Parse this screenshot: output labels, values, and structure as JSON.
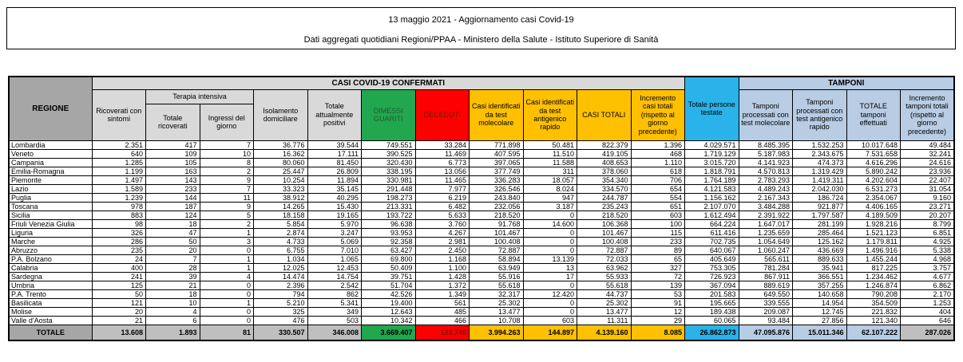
{
  "title": {
    "line1": "13 maggio 2021 - Aggiornamento casi Covid-19",
    "line2": "Dati aggregati quotidiani Regioni/PPAA - Ministero della Salute - Istituto Superiore di Sanità"
  },
  "colors": {
    "header_gray": "#d9d9d9",
    "regione_gray": "#a6a6a6",
    "total_gray": "#bfbfbf",
    "green": "#21a74e",
    "red": "#ff0000",
    "yellow": "#ffc000",
    "cyan": "#29b3ea",
    "light_blue": "#b8cce4"
  },
  "table": {
    "corner_header": "REGIONE",
    "groups": {
      "confermati": "CASI COVID-19 CONFERMATI",
      "tamponi": "TAMPONI"
    },
    "columns": {
      "ricoverati": "Ricoverati con sintomi",
      "terapia_intensiva": "Terapia intensiva",
      "terapia_totale": "Totale ricoverati",
      "terapia_ingressi": "Ingressi del giorno",
      "isolamento": "Isolamento domiciliare",
      "attualmente_positivi": "Totale attualmente positivi",
      "dimessi": "DIMESSI GUARITI",
      "deceduti": "DECEDUTI",
      "casi_molecolare": "Casi identificati da test molecolare",
      "casi_antigenico": "Casi identificati da test antigenico rapido",
      "casi_totali": "CASI TOTALI",
      "incremento_casi": "Incremento casi totali (rispetto al giorno precedente)",
      "persone_testate": "Totale persone testate",
      "tamponi_molecolare": "Tamponi processati con test molecolare",
      "tamponi_antigenico": "Tamponi processati con test antigenico rapido",
      "tamponi_totale": "TOTALE tamponi effettuati",
      "incremento_tamponi": "Incremento tamponi totali (rispetto al giorno precedente)"
    },
    "rows": [
      {
        "region": "Lombardia",
        "values": [
          "2.351",
          "417",
          "7",
          "36.776",
          "39.544",
          "749.551",
          "33.284",
          "771.898",
          "50.481",
          "822.379",
          "1.396",
          "4.029.571",
          "8.485.395",
          "1.532.253",
          "10.017.648",
          "49.484"
        ]
      },
      {
        "region": "Veneto",
        "values": [
          "640",
          "109",
          "10",
          "16.362",
          "17.111",
          "390.525",
          "11.469",
          "407.595",
          "11.510",
          "419.105",
          "468",
          "1.719.129",
          "5.187.983",
          "2.343.675",
          "7.531.658",
          "32.241"
        ]
      },
      {
        "region": "Campania",
        "values": [
          "1.285",
          "105",
          "8",
          "80.060",
          "81.450",
          "320.430",
          "6.773",
          "397.065",
          "11.588",
          "408.653",
          "1.110",
          "3.015.720",
          "4.141.923",
          "474.373",
          "4.616.296",
          "24.616"
        ]
      },
      {
        "region": "Emilia-Romagna",
        "values": [
          "1.199",
          "163",
          "2",
          "25.447",
          "26.809",
          "338.195",
          "13.056",
          "377.749",
          "311",
          "378.060",
          "618",
          "1.818.791",
          "4.570.813",
          "1.319.429",
          "5.890.242",
          "23.936"
        ]
      },
      {
        "region": "Piemonte",
        "values": [
          "1.497",
          "143",
          "9",
          "10.254",
          "11.894",
          "330.981",
          "11.465",
          "336.283",
          "18.057",
          "354.340",
          "706",
          "1.764.189",
          "2.783.293",
          "1.419.311",
          "4.202.604",
          "22.407"
        ]
      },
      {
        "region": "Lazio",
        "values": [
          "1.589",
          "233",
          "7",
          "33.323",
          "35.145",
          "291.448",
          "7.977",
          "326.546",
          "8.024",
          "334.570",
          "654",
          "4.121.583",
          "4.489.243",
          "2.042.030",
          "6.531.273",
          "31.054"
        ]
      },
      {
        "region": "Puglia",
        "values": [
          "1.239",
          "144",
          "11",
          "38.912",
          "40.295",
          "198.273",
          "6.219",
          "243.840",
          "947",
          "244.787",
          "554",
          "1.156.162",
          "2.167.343",
          "186.724",
          "2.354.067",
          "9.160"
        ]
      },
      {
        "region": "Toscana",
        "values": [
          "978",
          "187",
          "9",
          "14.265",
          "15.430",
          "213.331",
          "6.482",
          "232.056",
          "3.187",
          "235.243",
          "651",
          "2.107.070",
          "3.484.288",
          "921.877",
          "4.406.165",
          "23.271"
        ]
      },
      {
        "region": "Sicilia",
        "values": [
          "883",
          "124",
          "5",
          "18.158",
          "19.165",
          "193.722",
          "5.633",
          "218.520",
          "0",
          "218.520",
          "603",
          "1.612.494",
          "2.391.922",
          "1.797.587",
          "4.189.509",
          "20.207"
        ]
      },
      {
        "region": "Friuli Venezia Giulia",
        "values": [
          "98",
          "18",
          "2",
          "5.854",
          "5.970",
          "96.638",
          "3.760",
          "91.768",
          "14.600",
          "106.368",
          "100",
          "664.224",
          "1.647.017",
          "281.199",
          "1.928.216",
          "8.799"
        ]
      },
      {
        "region": "Liguria",
        "values": [
          "326",
          "47",
          "1",
          "2.874",
          "3.247",
          "93.953",
          "4.267",
          "101.467",
          "0",
          "101.467",
          "115",
          "611.416",
          "1.235.659",
          "285.464",
          "1.521.123",
          "6.851"
        ]
      },
      {
        "region": "Marche",
        "values": [
          "286",
          "50",
          "3",
          "4.733",
          "5.069",
          "92.358",
          "2.981",
          "100.408",
          "0",
          "100.408",
          "233",
          "702.735",
          "1.054.649",
          "125.162",
          "1.179.811",
          "4.925"
        ]
      },
      {
        "region": "Abruzzo",
        "values": [
          "235",
          "20",
          "0",
          "6.755",
          "7.010",
          "63.427",
          "2.450",
          "72.887",
          "0",
          "72.887",
          "89",
          "640.067",
          "1.060.247",
          "436.669",
          "1.496.916",
          "5.338"
        ]
      },
      {
        "region": "P.A. Bolzano",
        "values": [
          "24",
          "7",
          "1",
          "1.034",
          "1.065",
          "69.800",
          "1.168",
          "58.894",
          "13.139",
          "72.033",
          "65",
          "405.649",
          "565.611",
          "889.633",
          "1.455.244",
          "4.968"
        ]
      },
      {
        "region": "Calabria",
        "values": [
          "400",
          "28",
          "1",
          "12.025",
          "12.453",
          "50.409",
          "1.100",
          "63.949",
          "13",
          "63.962",
          "327",
          "753.305",
          "781.284",
          "35.941",
          "817.225",
          "3.757"
        ]
      },
      {
        "region": "Sardegna",
        "values": [
          "241",
          "39",
          "4",
          "14.474",
          "14.754",
          "39.751",
          "1.428",
          "55.916",
          "17",
          "55.933",
          "72",
          "726.923",
          "867.911",
          "366.551",
          "1.234.462",
          "4.677"
        ]
      },
      {
        "region": "Umbria",
        "values": [
          "125",
          "21",
          "0",
          "2.396",
          "2.542",
          "51.704",
          "1.372",
          "55.618",
          "0",
          "55.618",
          "139",
          "367.094",
          "889.619",
          "357.255",
          "1.246.874",
          "6.862"
        ]
      },
      {
        "region": "P.A. Trento",
        "values": [
          "50",
          "18",
          "0",
          "794",
          "862",
          "42.526",
          "1.349",
          "32.317",
          "12.420",
          "44.737",
          "53",
          "201.583",
          "649.550",
          "140.658",
          "790.208",
          "2.170"
        ]
      },
      {
        "region": "Basilicata",
        "values": [
          "121",
          "10",
          "1",
          "5.210",
          "5.341",
          "19.400",
          "561",
          "25.302",
          "0",
          "25.302",
          "91",
          "195.665",
          "339.555",
          "14.954",
          "354.509",
          "1.253"
        ]
      },
      {
        "region": "Molise",
        "values": [
          "20",
          "4",
          "0",
          "325",
          "349",
          "12.643",
          "485",
          "13.477",
          "0",
          "13.477",
          "12",
          "189.438",
          "209.087",
          "12.745",
          "221.832",
          "404"
        ]
      },
      {
        "region": "Valle d'Aosta",
        "values": [
          "21",
          "6",
          "0",
          "476",
          "503",
          "10.342",
          "466",
          "10.708",
          "603",
          "11.311",
          "29",
          "60.065",
          "93.484",
          "27.856",
          "121.340",
          "646"
        ]
      }
    ],
    "total": {
      "label": "TOTALE",
      "values": [
        "13.608",
        "1.893",
        "81",
        "330.507",
        "346.008",
        "3.669.407",
        "123.745",
        "3.994.263",
        "144.897",
        "4.139.160",
        "8.085",
        "26.862.873",
        "47.095.876",
        "15.011.346",
        "62.107.222",
        "287.026"
      ]
    }
  }
}
